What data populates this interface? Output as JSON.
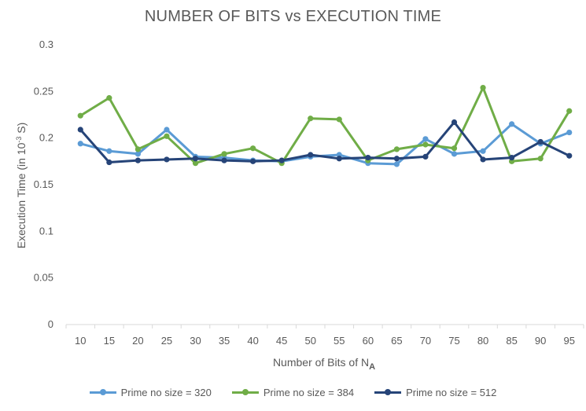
{
  "chart_data": {
    "type": "line",
    "title": "NUMBER OF BITS vs EXECUTION TIME",
    "xlabel": "Number of Bits of N",
    "xlabel_subscript": "A",
    "ylabel": "Execution Time (in 10",
    "ylabel_superscript": "-3",
    "ylabel_suffix": " S)",
    "categories": [
      "10",
      "15",
      "20",
      "25",
      "30",
      "35",
      "40",
      "45",
      "50",
      "55",
      "60",
      "65",
      "70",
      "75",
      "80",
      "85",
      "90",
      "95"
    ],
    "ylim": [
      0,
      0.3
    ],
    "yticks": [
      "0",
      "0.05",
      "0.1",
      "0.15",
      "0.2",
      "0.25",
      "0.3"
    ],
    "grid": false,
    "legend_position": "bottom",
    "series": [
      {
        "name": "Prime no size = 320",
        "color": "#5B9BD5",
        "values": [
          0.194,
          0.186,
          0.183,
          0.209,
          0.18,
          0.179,
          0.176,
          0.175,
          0.18,
          0.182,
          0.173,
          0.172,
          0.199,
          0.183,
          0.186,
          0.215,
          0.194,
          0.206
        ]
      },
      {
        "name": "Prime no size = 384",
        "color": "#70AD47",
        "values": [
          0.224,
          0.243,
          0.188,
          0.202,
          0.173,
          0.183,
          0.189,
          0.173,
          0.221,
          0.22,
          0.176,
          0.188,
          0.193,
          0.189,
          0.254,
          0.175,
          0.178,
          0.229
        ]
      },
      {
        "name": "Prime no size = 512",
        "color": "#264478",
        "values": [
          0.209,
          0.174,
          0.176,
          0.177,
          0.178,
          0.176,
          0.175,
          0.176,
          0.182,
          0.178,
          0.179,
          0.178,
          0.18,
          0.217,
          0.177,
          0.179,
          0.196,
          0.181
        ]
      }
    ]
  }
}
